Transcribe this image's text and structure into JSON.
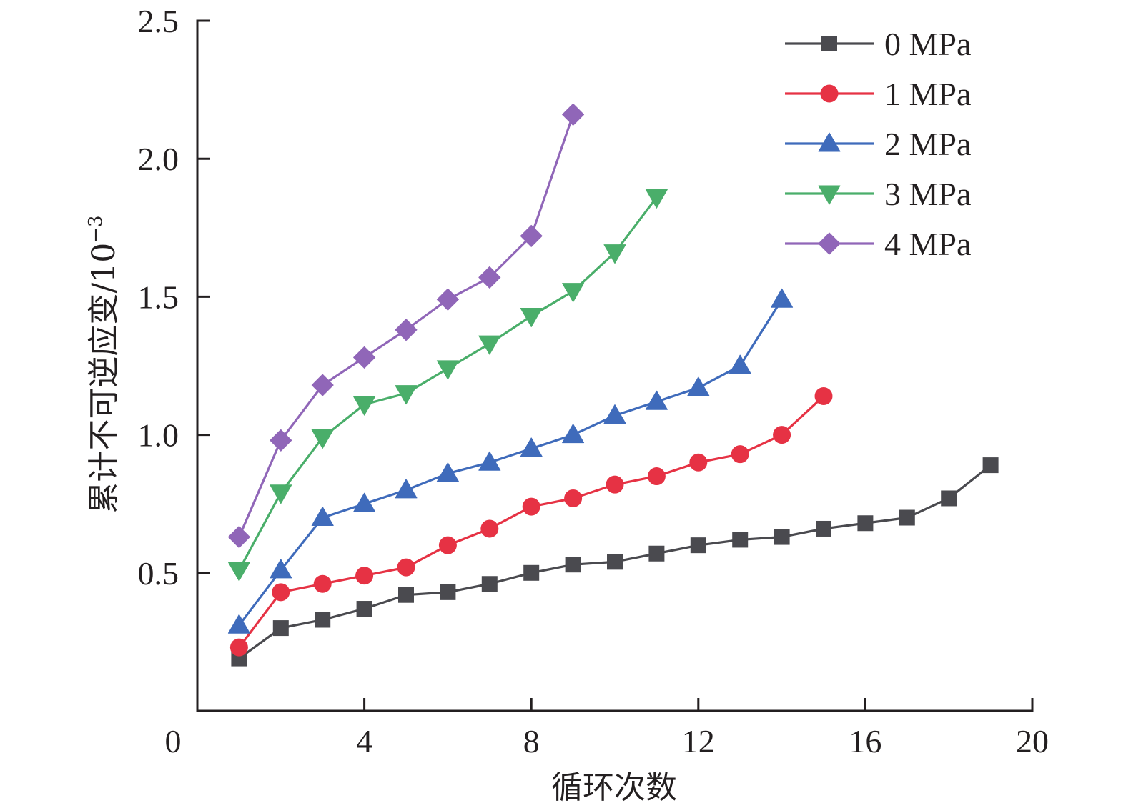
{
  "chart_data": {
    "type": "line",
    "title": "",
    "xlabel": "循环次数",
    "ylabel": "累计不可逆应变/10",
    "ylabel_superscript": "−3",
    "xlim": [
      0,
      20
    ],
    "ylim": [
      0,
      2.5
    ],
    "xticks": [
      0,
      4,
      8,
      12,
      16,
      20
    ],
    "xtick_labels": [
      "0",
      "4",
      "8",
      "12",
      "16",
      "20"
    ],
    "yticks": [
      0.5,
      1.0,
      1.5,
      2.0,
      2.5
    ],
    "ytick_labels": [
      "0.5",
      "1.0",
      "1.5",
      "2.0",
      "2.5"
    ],
    "grid": false,
    "legend_position": "top-right",
    "series": [
      {
        "name": "0 MPa",
        "color": "#4a4a4f",
        "marker": "square",
        "x": [
          1,
          2,
          3,
          4,
          5,
          6,
          7,
          8,
          9,
          10,
          11,
          12,
          13,
          14,
          15,
          16,
          17,
          18,
          19
        ],
        "values": [
          0.19,
          0.3,
          0.33,
          0.37,
          0.42,
          0.43,
          0.46,
          0.5,
          0.53,
          0.54,
          0.57,
          0.6,
          0.62,
          0.63,
          0.66,
          0.68,
          0.7,
          0.77,
          0.89
        ]
      },
      {
        "name": "1 MPa",
        "color": "#e63244",
        "marker": "circle",
        "x": [
          1,
          2,
          3,
          4,
          5,
          6,
          7,
          8,
          9,
          10,
          11,
          12,
          13,
          14,
          15
        ],
        "values": [
          0.23,
          0.43,
          0.46,
          0.49,
          0.52,
          0.6,
          0.66,
          0.74,
          0.77,
          0.82,
          0.85,
          0.9,
          0.93,
          1.0,
          1.14
        ]
      },
      {
        "name": "2 MPa",
        "color": "#3f6bbb",
        "marker": "triangle-up",
        "x": [
          1,
          2,
          3,
          4,
          5,
          6,
          7,
          8,
          9,
          10,
          11,
          12,
          13,
          14
        ],
        "values": [
          0.31,
          0.51,
          0.7,
          0.75,
          0.8,
          0.86,
          0.9,
          0.95,
          1.0,
          1.07,
          1.12,
          1.17,
          1.25,
          1.49
        ]
      },
      {
        "name": "3 MPa",
        "color": "#4aae6a",
        "marker": "triangle-down",
        "x": [
          1,
          2,
          3,
          4,
          5,
          6,
          7,
          8,
          9,
          10,
          11
        ],
        "values": [
          0.51,
          0.79,
          0.99,
          1.11,
          1.15,
          1.24,
          1.33,
          1.43,
          1.52,
          1.66,
          1.86
        ]
      },
      {
        "name": "4 MPa",
        "color": "#9066b8",
        "marker": "diamond",
        "x": [
          1,
          2,
          3,
          4,
          5,
          6,
          7,
          8,
          9
        ],
        "values": [
          0.63,
          0.98,
          1.18,
          1.28,
          1.38,
          1.49,
          1.57,
          1.72,
          2.16
        ]
      }
    ]
  }
}
